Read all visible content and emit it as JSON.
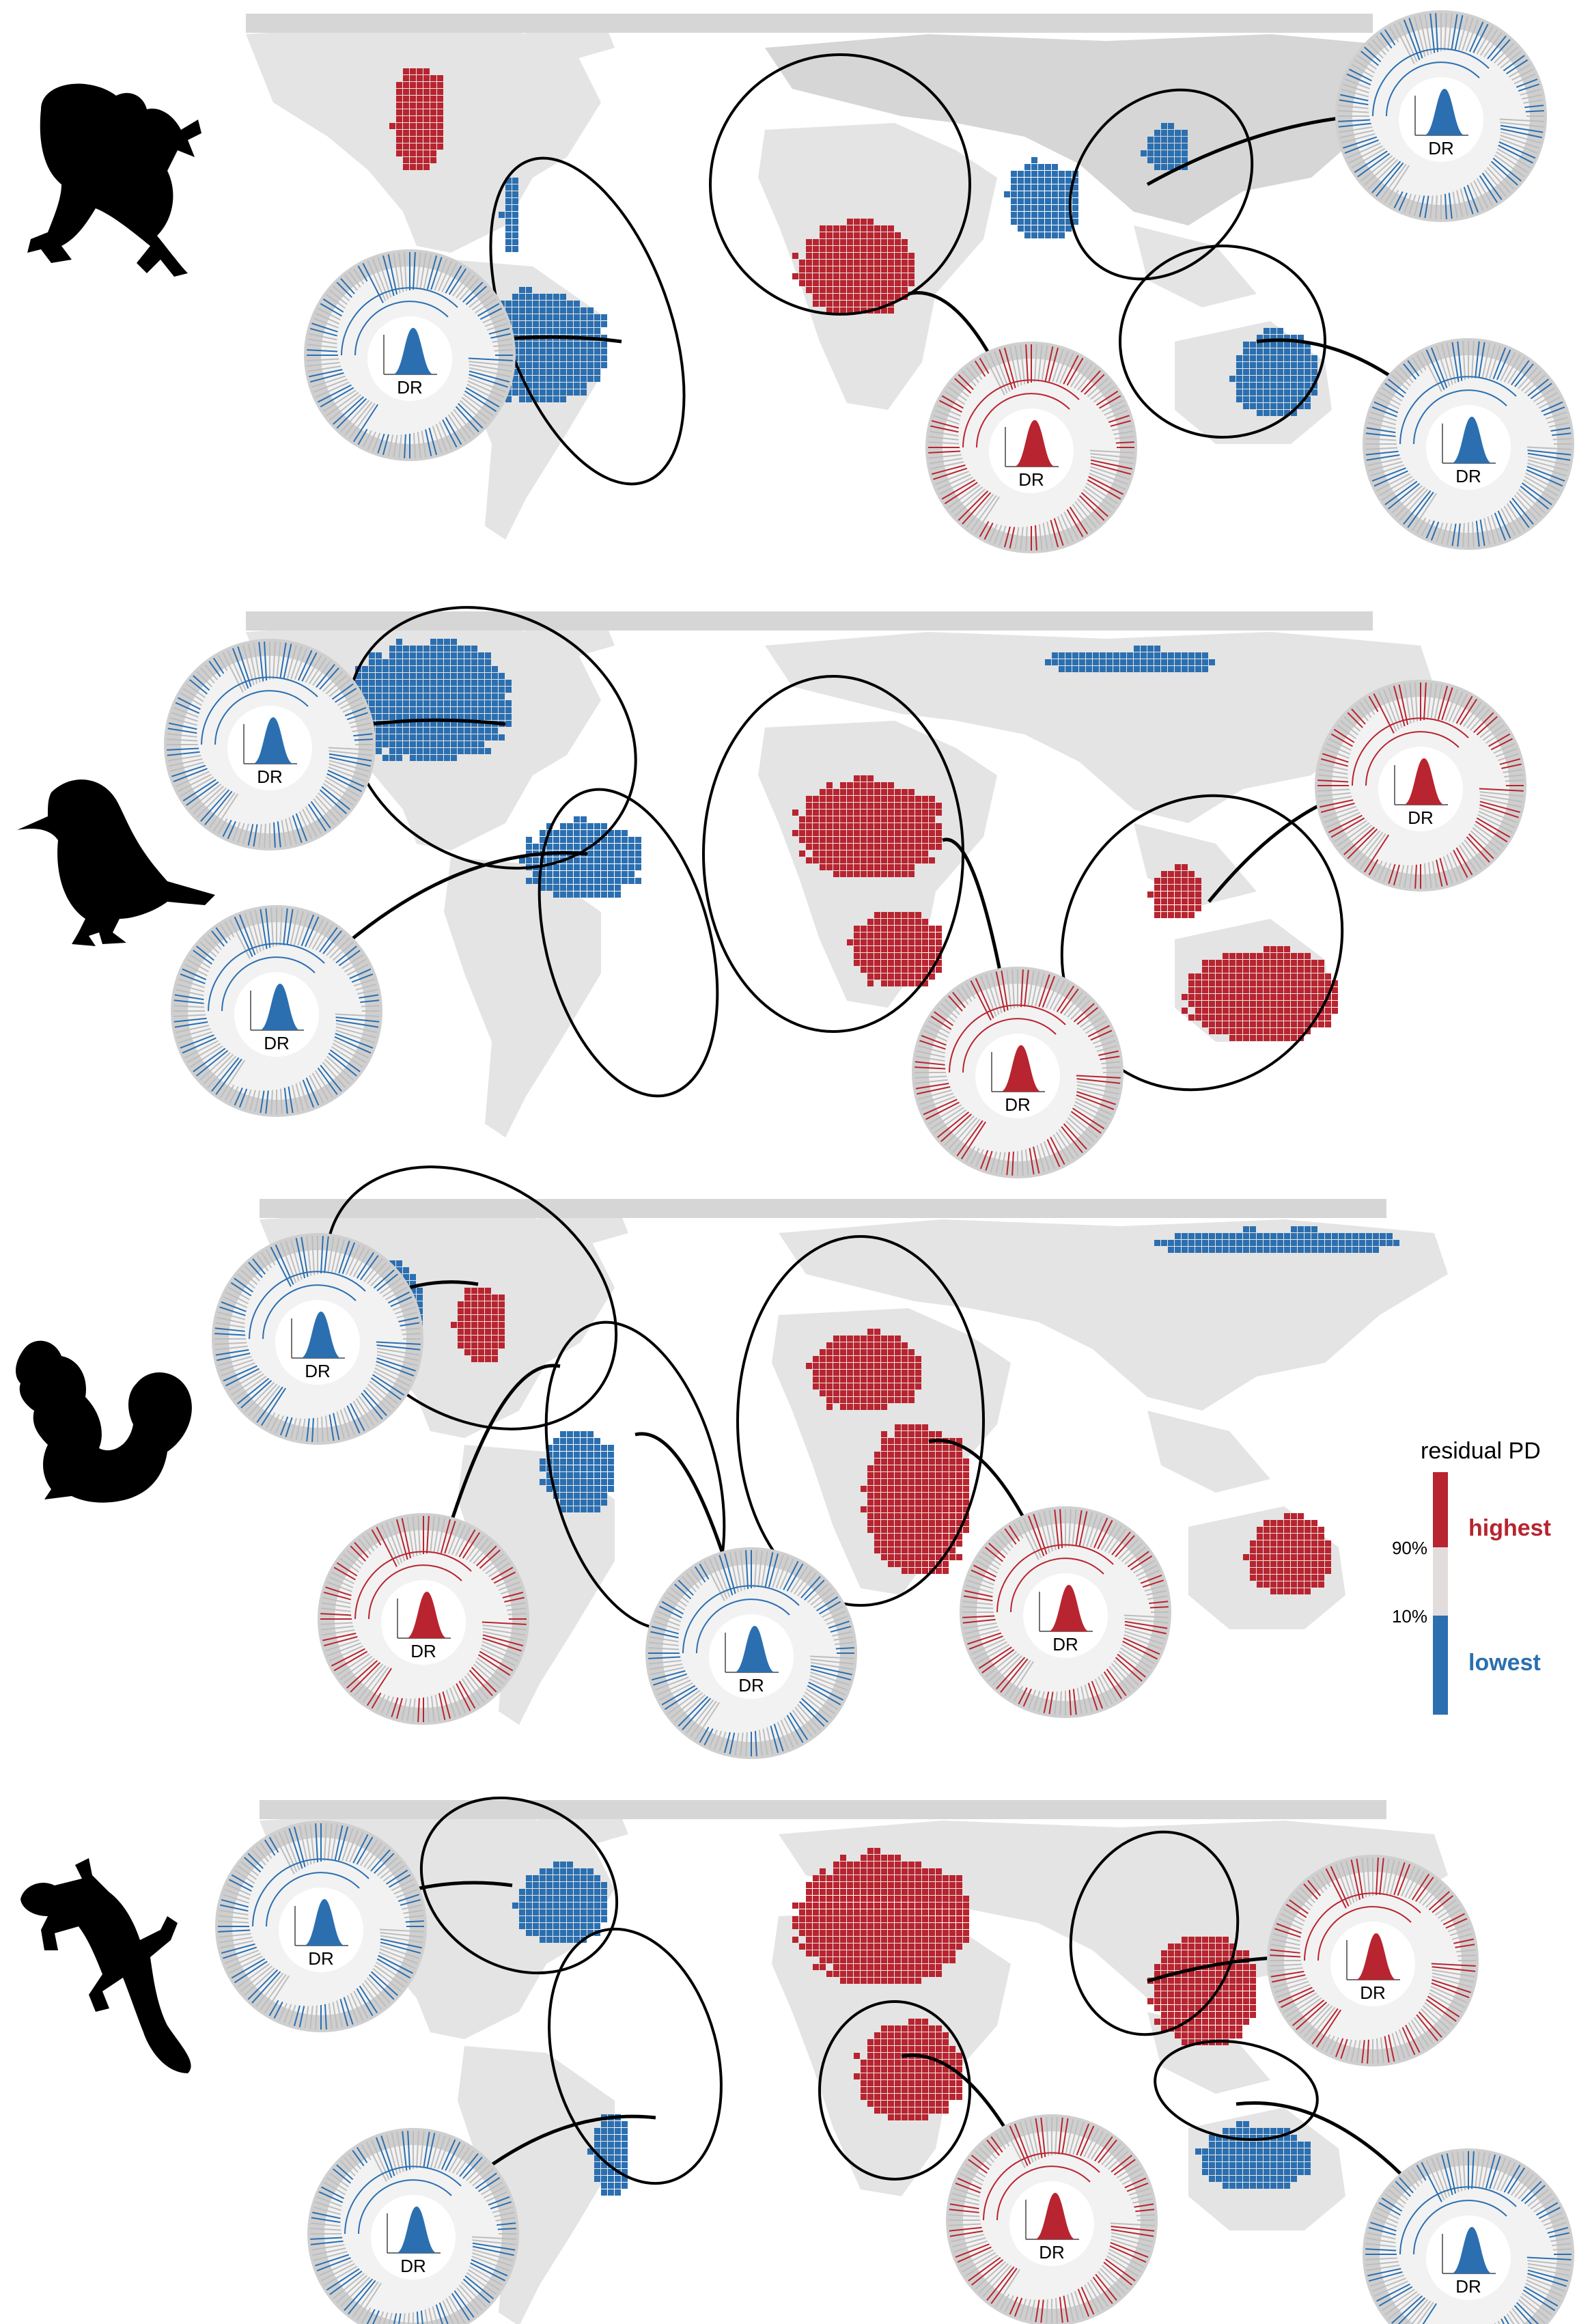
{
  "colors": {
    "high": "#b8242f",
    "low": "#2b6fb0",
    "land": "#d6d6d6",
    "land_light": "#e4e4e4",
    "mid": "#e3dcdc"
  },
  "legend": {
    "title": "residual PD",
    "p90": "90%",
    "p10": "10%",
    "highest": "highest",
    "lowest": "lowest"
  },
  "panels": [
    {
      "taxon": "amphibians",
      "icon": "frog-icon",
      "insets": [
        {
          "label": "DR",
          "color": "low",
          "region": "south-america"
        },
        {
          "label": "DR",
          "color": "high",
          "region": "southern-africa"
        },
        {
          "label": "DR",
          "color": "low",
          "region": "south-asia"
        },
        {
          "label": "DR",
          "color": "low",
          "region": "australia"
        }
      ]
    },
    {
      "taxon": "birds",
      "icon": "bird-icon",
      "insets": [
        {
          "label": "DR",
          "color": "low",
          "region": "north-america"
        },
        {
          "label": "DR",
          "color": "low",
          "region": "south-america"
        },
        {
          "label": "DR",
          "color": "high",
          "region": "africa"
        },
        {
          "label": "DR",
          "color": "high",
          "region": "australasia"
        }
      ]
    },
    {
      "taxon": "mammals",
      "icon": "squirrel-icon",
      "insets": [
        {
          "label": "DR",
          "color": "low",
          "region": "north-america"
        },
        {
          "label": "DR",
          "color": "high",
          "region": "central-america"
        },
        {
          "label": "DR",
          "color": "low",
          "region": "south-america"
        },
        {
          "label": "DR",
          "color": "high",
          "region": "africa"
        }
      ]
    },
    {
      "taxon": "squamates",
      "icon": "gecko-icon",
      "insets": [
        {
          "label": "DR",
          "color": "low",
          "region": "north-america"
        },
        {
          "label": "DR",
          "color": "low",
          "region": "south-america"
        },
        {
          "label": "DR",
          "color": "high",
          "region": "southern-africa"
        },
        {
          "label": "DR",
          "color": "high",
          "region": "southeast-asia"
        },
        {
          "label": "DR",
          "color": "low",
          "region": "australia"
        }
      ]
    }
  ]
}
